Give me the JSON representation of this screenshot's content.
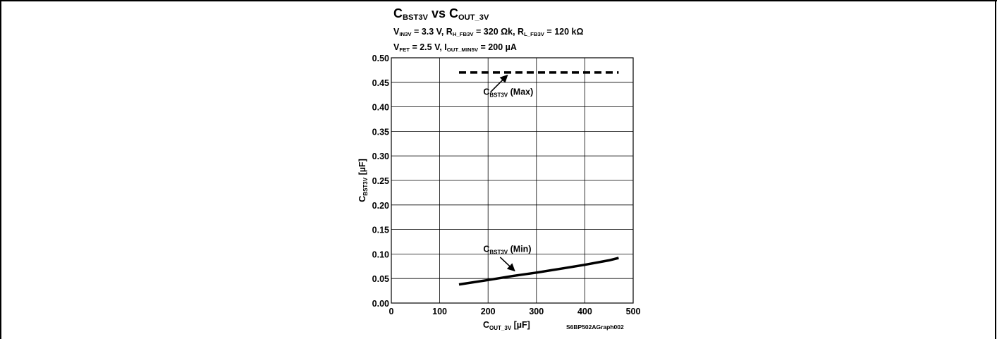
{
  "chart_data": {
    "type": "line",
    "title": {
      "base": "C",
      "sub": "BST3V",
      "mid": " vs C",
      "sub2": "OUT_3V"
    },
    "conditions": [
      [
        {
          "t": "V"
        },
        {
          "s": "IN3V"
        },
        {
          "t": " = 3.3 V, R"
        },
        {
          "s": "H_FB3V"
        },
        {
          "t": " = 320 Ωk, R"
        },
        {
          "s": "L_FB3V"
        },
        {
          "t": " = 120 kΩ"
        }
      ],
      [
        {
          "t": "V"
        },
        {
          "s": "FET"
        },
        {
          "t": " = 2.5 V, I"
        },
        {
          "s": "OUT_MIN5V"
        },
        {
          "t": " = 200 µA"
        }
      ]
    ],
    "xlabel": {
      "base": "C",
      "sub": "OUT_3V",
      "unit": " [µF]"
    },
    "ylabel": {
      "base": "C",
      "sub": "BST3V",
      "unit": " [µF]"
    },
    "xlim": [
      0,
      500
    ],
    "ylim": [
      0,
      0.5
    ],
    "x_ticks": [
      "0",
      "100",
      "200",
      "300",
      "400",
      "500"
    ],
    "y_ticks": [
      "0.00",
      "0.05",
      "0.10",
      "0.15",
      "0.20",
      "0.25",
      "0.30",
      "0.35",
      "0.40",
      "0.45",
      "0.50"
    ],
    "grid": true,
    "series": [
      {
        "name": "Max",
        "style": "dashed",
        "x": [
          140,
          200,
          300,
          400,
          470
        ],
        "y": [
          0.47,
          0.47,
          0.47,
          0.47,
          0.47
        ]
      },
      {
        "name": "Min",
        "style": "solid",
        "x": [
          140,
          200,
          250,
          300,
          350,
          400,
          450,
          470
        ],
        "y": [
          0.038,
          0.047,
          0.055,
          0.062,
          0.07,
          0.078,
          0.087,
          0.092
        ]
      }
    ],
    "annotations": [
      {
        "label_base": "C",
        "label_sub": "BST3V",
        "label_suffix": " (Max)",
        "series": "Max"
      },
      {
        "label_base": "C",
        "label_sub": "BST3V",
        "label_suffix": " (Min)",
        "series": "Min"
      }
    ],
    "figure_id": "S6BP502AGraph002"
  }
}
